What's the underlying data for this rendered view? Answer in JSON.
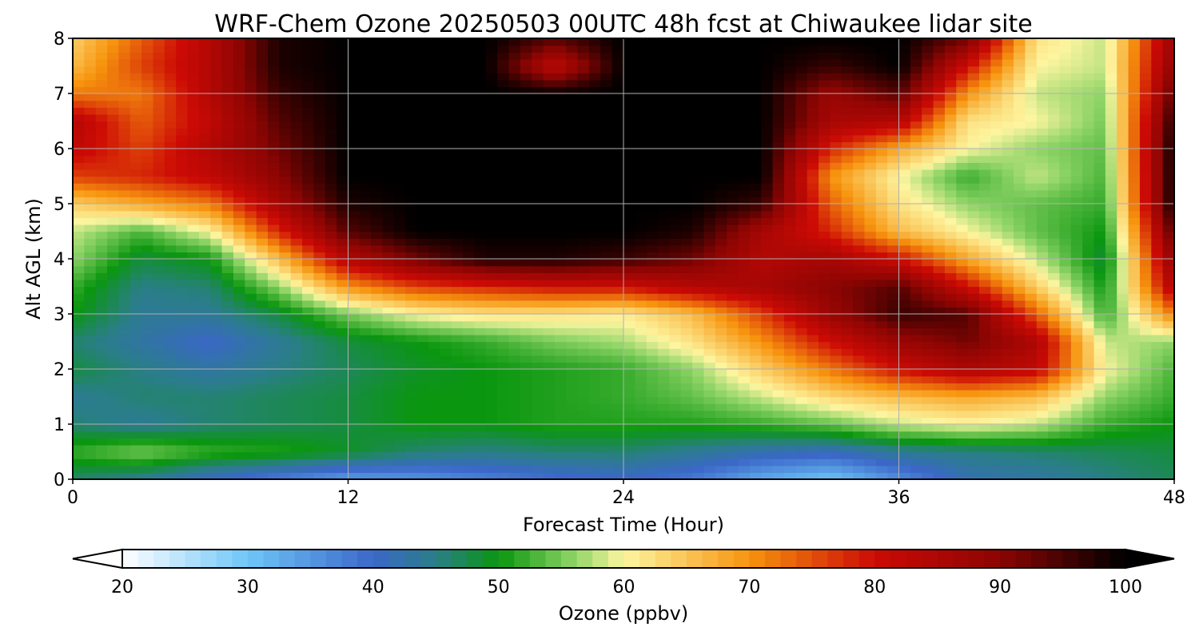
{
  "chart_data": {
    "type": "heatmap",
    "title": "WRF-Chem Ozone  20250503 00UTC 48h fcst at Chiwaukee lidar site",
    "xlabel": "Forecast Time (Hour)",
    "ylabel": "Alt AGL (km)",
    "xlim": [
      0,
      48
    ],
    "ylim": [
      0,
      8
    ],
    "x_ticks": [
      "0",
      "12",
      "24",
      "36",
      "48"
    ],
    "y_ticks": [
      "0",
      "1",
      "2",
      "3",
      "4",
      "5",
      "6",
      "7",
      "8"
    ],
    "grid": true,
    "x": [
      0,
      3,
      6,
      9,
      12,
      15,
      18,
      21,
      24,
      27,
      30,
      33,
      36,
      39,
      42,
      45,
      48
    ],
    "y": [
      0,
      0.5,
      1,
      1.5,
      2,
      2.5,
      3,
      3.5,
      4,
      4.5,
      5,
      5.5,
      6,
      6.5,
      7,
      7.5,
      8
    ],
    "z": [
      [
        46,
        44,
        40,
        37,
        34,
        35,
        37,
        39,
        40,
        38,
        33,
        30,
        36,
        42,
        43,
        45,
        47
      ],
      [
        52,
        55,
        52,
        51,
        49,
        46,
        45,
        46,
        46,
        44,
        42,
        41,
        44,
        45,
        46,
        47,
        48
      ],
      [
        46,
        44,
        46,
        47,
        48,
        50,
        50,
        51,
        51,
        51,
        52,
        54,
        58,
        60,
        58,
        52,
        50
      ],
      [
        44,
        46,
        46,
        47,
        48,
        50,
        50,
        51,
        52,
        54,
        58,
        63,
        66,
        68,
        66,
        56,
        52
      ],
      [
        48,
        45,
        43,
        45,
        47,
        49,
        50,
        51,
        52,
        56,
        64,
        72,
        80,
        85,
        82,
        60,
        53
      ],
      [
        46,
        43,
        40,
        44,
        48,
        50,
        52,
        55,
        57,
        62,
        70,
        80,
        88,
        92,
        85,
        58,
        56
      ],
      [
        50,
        44,
        44,
        48,
        55,
        60,
        62,
        62,
        61,
        66,
        76,
        88,
        96,
        94,
        74,
        52,
        72
      ],
      [
        52,
        45,
        46,
        56,
        70,
        76,
        78,
        80,
        80,
        84,
        86,
        90,
        94,
        80,
        64,
        50,
        85
      ],
      [
        56,
        48,
        50,
        66,
        84,
        92,
        98,
        98,
        96,
        92,
        84,
        86,
        80,
        68,
        58,
        48,
        90
      ],
      [
        58,
        53,
        60,
        78,
        94,
        100,
        100,
        100,
        100,
        98,
        86,
        78,
        66,
        60,
        54,
        50,
        95
      ],
      [
        64,
        68,
        72,
        86,
        98,
        100,
        100,
        100,
        100,
        100,
        96,
        74,
        62,
        56,
        54,
        52,
        100
      ],
      [
        76,
        78,
        82,
        90,
        100,
        100,
        100,
        100,
        100,
        100,
        100,
        70,
        60,
        52,
        58,
        53,
        100
      ],
      [
        82,
        76,
        84,
        92,
        100,
        100,
        100,
        100,
        100,
        100,
        100,
        78,
        68,
        60,
        56,
        54,
        100
      ],
      [
        84,
        74,
        82,
        94,
        100,
        100,
        100,
        100,
        100,
        100,
        100,
        86,
        84,
        62,
        60,
        55,
        98
      ],
      [
        72,
        72,
        84,
        96,
        100,
        100,
        100,
        100,
        100,
        100,
        100,
        88,
        94,
        70,
        58,
        56,
        94
      ],
      [
        66,
        76,
        84,
        98,
        100,
        100,
        100,
        82,
        100,
        100,
        100,
        96,
        100,
        80,
        60,
        58,
        90
      ],
      [
        64,
        74,
        84,
        98,
        100,
        100,
        100,
        94,
        100,
        100,
        100,
        100,
        100,
        92,
        62,
        58,
        88
      ]
    ],
    "colorbar": {
      "label": "Ozone  (ppbv)",
      "min": 20,
      "max": 100,
      "extend": "both",
      "ticks": [
        "20",
        "30",
        "40",
        "50",
        "60",
        "70",
        "80",
        "90",
        "100"
      ],
      "stops": [
        {
          "v": 20,
          "c": "#ffffff"
        },
        {
          "v": 30,
          "c": "#6ec6f8"
        },
        {
          "v": 40,
          "c": "#3b67c9"
        },
        {
          "v": 45,
          "c": "#2a7e88"
        },
        {
          "v": 50,
          "c": "#0a960f"
        },
        {
          "v": 56,
          "c": "#8ed466"
        },
        {
          "v": 60,
          "c": "#fdf5a0"
        },
        {
          "v": 70,
          "c": "#f7940e"
        },
        {
          "v": 80,
          "c": "#cc0a05"
        },
        {
          "v": 90,
          "c": "#8c0503"
        },
        {
          "v": 100,
          "c": "#000000"
        }
      ]
    }
  }
}
